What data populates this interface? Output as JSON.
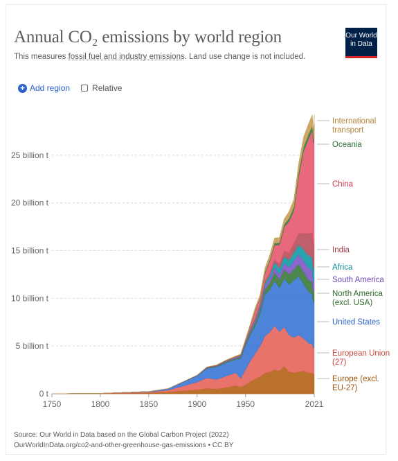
{
  "header": {
    "title": "Annual CO₂ emissions by world region",
    "subtitle_pre": "This measures ",
    "subtitle_link": "fossil fuel and industry emissions",
    "subtitle_post": ". Land use change is not included.",
    "logo_line1": "Our World",
    "logo_line2": "in Data"
  },
  "controls": {
    "add_region_label": "Add region",
    "relative_label": "Relative",
    "relative_checked": false
  },
  "footer": {
    "source": "Source: Our World in Data based on the Global Carbon Project (2022)",
    "url": "OurWorldInData.org/co2-and-other-greenhouse-gas-emissions • CC BY"
  },
  "chart_data": {
    "type": "area",
    "stacked": true,
    "x": [
      1750,
      1800,
      1850,
      1870,
      1900,
      1910,
      1920,
      1930,
      1940,
      1945,
      1950,
      1955,
      1960,
      1965,
      1970,
      1975,
      1980,
      1985,
      1990,
      1995,
      2000,
      2005,
      2010,
      2015,
      2019,
      2020,
      2021
    ],
    "x_ticks": [
      "1750",
      "1800",
      "1850",
      "1900",
      "1950",
      "2021"
    ],
    "y_ticks": [
      "0 t",
      "5 billion t",
      "10 billion t",
      "15 billion t",
      "20 billion t",
      "25 billion t"
    ],
    "ylim": [
      0,
      29500000000
    ],
    "grid": "horizontal dashed",
    "legend_placement": "right, aligned to series ends",
    "series": [
      {
        "name": "Europe (excl. EU-27)",
        "color": "#b16214",
        "values": [
          5000000.0,
          20000000.0,
          100000000.0,
          180000000.0,
          420000000.0,
          550000000.0,
          500000000.0,
          650000000.0,
          850000000.0,
          700000000.0,
          950000000.0,
          1250000000.0,
          1550000000.0,
          1800000000.0,
          2150000000.0,
          2300000000.0,
          2500000000.0,
          2400000000.0,
          2900000000.0,
          2300000000.0,
          2200000000.0,
          2300000000.0,
          2400000000.0,
          2200000000.0,
          2200000000.0,
          2050000000.0,
          2100000000.0
        ]
      },
      {
        "name": "European Union (27)",
        "color": "#e5645a",
        "values": [
          5000000.0,
          20000000.0,
          80000000.0,
          200000000.0,
          800000000.0,
          1100000000.0,
          1000000000.0,
          1200000000.0,
          1350000000.0,
          900000000.0,
          1600000000.0,
          2200000000.0,
          2650000000.0,
          3200000000.0,
          3900000000.0,
          4150000000.0,
          4600000000.0,
          4100000000.0,
          4100000000.0,
          3850000000.0,
          3700000000.0,
          3850000000.0,
          3400000000.0,
          3100000000.0,
          3000000000.0,
          2700000000.0,
          2800000000.0
        ]
      },
      {
        "name": "United States",
        "color": "#3a75d4",
        "values": [
          0,
          5000000.0,
          50000000.0,
          150000000.0,
          650000000.0,
          1000000000.0,
          1300000000.0,
          1400000000.0,
          1400000000.0,
          2100000000.0,
          2500000000.0,
          2750000000.0,
          2900000000.0,
          3400000000.0,
          4300000000.0,
          4450000000.0,
          4750000000.0,
          4600000000.0,
          5100000000.0,
          5300000000.0,
          6000000000.0,
          6150000000.0,
          5700000000.0,
          5400000000.0,
          5250000000.0,
          4700000000.0,
          5000000000.0
        ]
      },
      {
        "name": "North America (excl. USA)",
        "color": "#3b7a3a",
        "values": [
          0,
          0,
          0,
          5000000.0,
          30000000.0,
          60000000.0,
          70000000.0,
          90000000.0,
          100000000.0,
          130000000.0,
          180000000.0,
          250000000.0,
          320000000.0,
          420000000.0,
          580000000.0,
          720000000.0,
          850000000.0,
          880000000.0,
          950000000.0,
          1050000000.0,
          1150000000.0,
          1300000000.0,
          1280000000.0,
          1250000000.0,
          1250000000.0,
          1100000000.0,
          1150000000.0
        ]
      },
      {
        "name": "South America",
        "color": "#7f56c5",
        "values": [
          0,
          0,
          0,
          0,
          10000000.0,
          30000000.0,
          40000000.0,
          50000000.0,
          70000000.0,
          90000000.0,
          120000000.0,
          170000000.0,
          220000000.0,
          280000000.0,
          370000000.0,
          450000000.0,
          550000000.0,
          550000000.0,
          630000000.0,
          750000000.0,
          900000000.0,
          980000000.0,
          1150000000.0,
          1250000000.0,
          1200000000.0,
          1050000000.0,
          1150000000.0
        ]
      },
      {
        "name": "Africa",
        "color": "#129aa5",
        "values": [
          0,
          0,
          0,
          0,
          5000000.0,
          10000000.0,
          20000000.0,
          30000000.0,
          40000000.0,
          50000000.0,
          70000000.0,
          100000000.0,
          130000000.0,
          170000000.0,
          300000000.0,
          370000000.0,
          530000000.0,
          630000000.0,
          700000000.0,
          780000000.0,
          880000000.0,
          1050000000.0,
          1180000000.0,
          1300000000.0,
          1400000000.0,
          1300000000.0,
          1400000000.0
        ]
      },
      {
        "name": "India",
        "color": "#b84e5c",
        "values": [
          0,
          0,
          0,
          0,
          20000000.0,
          30000000.0,
          40000000.0,
          40000000.0,
          50000000.0,
          60000000.0,
          70000000.0,
          100000000.0,
          120000000.0,
          170000000.0,
          200000000.0,
          250000000.0,
          300000000.0,
          450000000.0,
          580000000.0,
          750000000.0,
          980000000.0,
          1200000000.0,
          1700000000.0,
          2300000000.0,
          2600000000.0,
          2450000000.0,
          2700000000.0
        ]
      },
      {
        "name": "China",
        "color": "#e6596e",
        "values": [
          0,
          0,
          0,
          0,
          5000000.0,
          10000000.0,
          20000000.0,
          30000000.0,
          40000000.0,
          50000000.0,
          80000000.0,
          300000000.0,
          800000000.0,
          500000000.0,
          800000000.0,
          1200000000.0,
          1500000000.0,
          2000000000.0,
          2500000000.0,
          3300000000.0,
          3400000000.0,
          6000000000.0,
          8600000000.0,
          9900000000.0,
          10700000000.0,
          10900000000.0,
          11500000000.0
        ]
      },
      {
        "name": "Oceania",
        "color": "#2f7a45",
        "values": [
          0,
          0,
          0,
          0,
          5000000.0,
          10000000.0,
          10000000.0,
          20000000.0,
          20000000.0,
          20000000.0,
          30000000.0,
          50000000.0,
          70000000.0,
          90000000.0,
          120000000.0,
          150000000.0,
          200000000.0,
          220000000.0,
          280000000.0,
          320000000.0,
          380000000.0,
          420000000.0,
          450000000.0,
          470000000.0,
          480000000.0,
          460000000.0,
          470000000.0
        ]
      },
      {
        "name": "International transport",
        "color": "#c69d55",
        "values": [
          0,
          0,
          0,
          0,
          0,
          10000000.0,
          20000000.0,
          30000000.0,
          50000000.0,
          60000000.0,
          150000000.0,
          200000000.0,
          300000000.0,
          350000000.0,
          450000000.0,
          500000000.0,
          550000000.0,
          550000000.0,
          600000000.0,
          700000000.0,
          800000000.0,
          950000000.0,
          1050000000.0,
          1100000000.0,
          1150000000.0,
          800000000.0,
          900000000.0
        ]
      }
    ],
    "legend": [
      {
        "lines": [
          "International",
          "transport"
        ],
        "color": "#b7863c"
      },
      {
        "lines": [
          "Oceania"
        ],
        "color": "#2f6e3e"
      },
      {
        "lines": [
          "China"
        ],
        "color": "#d2354f"
      },
      {
        "lines": [
          "India"
        ],
        "color": "#a33f4e"
      },
      {
        "lines": [
          "Africa"
        ],
        "color": "#0f8b95"
      },
      {
        "lines": [
          "South America"
        ],
        "color": "#7049b4"
      },
      {
        "lines": [
          "North America",
          "(excl. USA)"
        ],
        "color": "#2e6b2c"
      },
      {
        "lines": [
          "United States"
        ],
        "color": "#2a62c9"
      },
      {
        "lines": [
          "European Union",
          "(27)"
        ],
        "color": "#c8483f"
      },
      {
        "lines": [
          "Europe (excl.",
          "EU-27)"
        ],
        "color": "#a0540f"
      }
    ]
  }
}
